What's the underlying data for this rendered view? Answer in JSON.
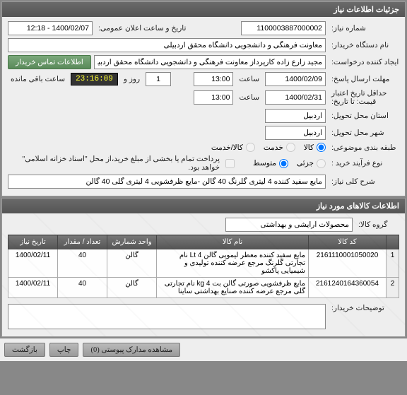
{
  "panel1_title": "جزئیات اطلاعات نیاز",
  "request_no_label": "شماره نیاز:",
  "request_no": "1100003887000002",
  "announce_label": "تاریخ و ساعت اعلان عمومی:",
  "announce_value": "1400/02/07 - 12:18",
  "buyer_label": "نام دستگاه خریدار:",
  "buyer": "معاونت فرهنگی و دانشجویی دانشگاه محقق اردبیلی",
  "creator_label": "ایجاد کننده درخواست:",
  "creator": "مجید زارع زاده کارپرداز معاونت فرهنگی و دانشجویی دانشگاه محقق اردبیلی",
  "contact_btn": "اطلاعات تماس خریدار",
  "deadline_reply_label": "مهلت ارسال پاسخ:",
  "deadline_reply_date": "1400/02/09",
  "time_label": "ساعت",
  "deadline_reply_time": "13:00",
  "days": "1",
  "days_label": "روز و",
  "countdown": "23:16:09",
  "remaining_label": "ساعت باقی مانده",
  "validity_label": "حداقل تاریخ اعتبار قیمت: تا تاریخ:",
  "validity_date": "1400/02/31",
  "validity_time": "13:00",
  "deliver_province_label": "استان محل تحویل:",
  "deliver_province": "اردبیل",
  "deliver_city_label": "شهر محل تحویل:",
  "deliver_city": "اردبیل",
  "classify_label": "طبقه بندی موضوعی:",
  "classify_goods": "کالا",
  "classify_service": "خدمت",
  "classify_both": "کالا/خدمت",
  "process_label": "نوع فرآیند خرید :",
  "process_low": "جزئی",
  "process_mid": "متوسط",
  "process_note": "پرداخت تمام یا بخشی از مبلغ خرید،از محل \"اسناد خزانه اسلامی\" خواهد بود.",
  "general_desc_label": "شرح کلی نیاز:",
  "general_desc": "مایع سفید کننده 4 لیتری گلرنگ 40 گالن -مایع ظرفشویی 4 لیتری گلی 40 گالن",
  "panel2_title": "اطلاعات کالاهای مورد نیاز",
  "group_label": "گروه کالا:",
  "group": "محصولات آرایشی و بهداشتی",
  "cols": {
    "idx": "",
    "code": "کد کالا",
    "name": "نام کالا",
    "unit": "واحد شمارش",
    "qty": "تعداد / مقدار",
    "date": "تاریخ نیاز"
  },
  "rows": [
    {
      "idx": "1",
      "code": "2161110001050020",
      "name": "مایع سفید کننده معطر لیمویی گالن 4 Lt نام تجارتی گلرنگ مرجع عرضه کننده تولیدی و شیمیایی پاکشو",
      "unit": "گالن",
      "qty": "40",
      "date": "1400/02/11"
    },
    {
      "idx": "2",
      "code": "2161240164360054",
      "name": "مایع ظرفشویی صورتی گالن بت kg 4 نام تجارتی گلی مرجع عرضه کننده صنایع بهداشتی ساینا",
      "unit": "گالن",
      "qty": "40",
      "date": "1400/02/11"
    }
  ],
  "buyer_notes_label": "توضیحات خریدار:",
  "buyer_notes": "",
  "bottom": {
    "attachments": "مشاهده مدارک پیوستی  (0)",
    "print": "چاپ",
    "back": "بازگشت"
  }
}
